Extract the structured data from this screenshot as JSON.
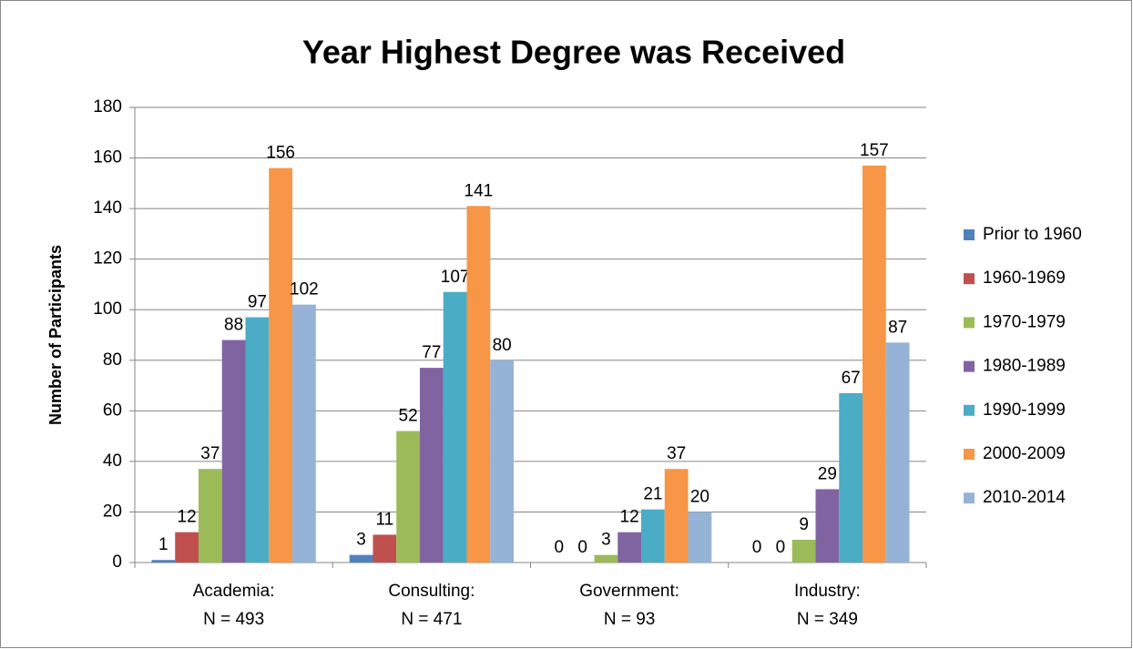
{
  "chart_data": {
    "type": "bar",
    "title": "Year Highest Degree was Received",
    "y_label": "Number of Participants",
    "categories": [
      [
        "Academia:",
        "N = 493"
      ],
      [
        "Consulting:",
        "N = 471"
      ],
      [
        "Government:",
        "N = 93"
      ],
      [
        "Industry:",
        "N = 349"
      ]
    ],
    "series": [
      {
        "name": "Prior to 1960",
        "color": "#4f81bd",
        "values": [
          1,
          3,
          0,
          0
        ]
      },
      {
        "name": "1960-1969",
        "color": "#c0504d",
        "values": [
          12,
          11,
          0,
          0
        ]
      },
      {
        "name": "1970-1979",
        "color": "#9bbb59",
        "values": [
          37,
          52,
          3,
          9
        ]
      },
      {
        "name": "1980-1989",
        "color": "#8064a2",
        "values": [
          88,
          77,
          12,
          29
        ]
      },
      {
        "name": "1990-1999",
        "color": "#4bacc6",
        "values": [
          97,
          107,
          21,
          67
        ]
      },
      {
        "name": "2000-2009",
        "color": "#f79646",
        "values": [
          156,
          141,
          37,
          157
        ]
      },
      {
        "name": "2010-2014",
        "color": "#95b3d7",
        "values": [
          102,
          80,
          20,
          87
        ]
      }
    ],
    "ylim": [
      0,
      180
    ],
    "yticks": [
      0,
      20,
      40,
      60,
      80,
      100,
      120,
      140,
      160,
      180
    ],
    "grid": true,
    "legend": "right"
  }
}
